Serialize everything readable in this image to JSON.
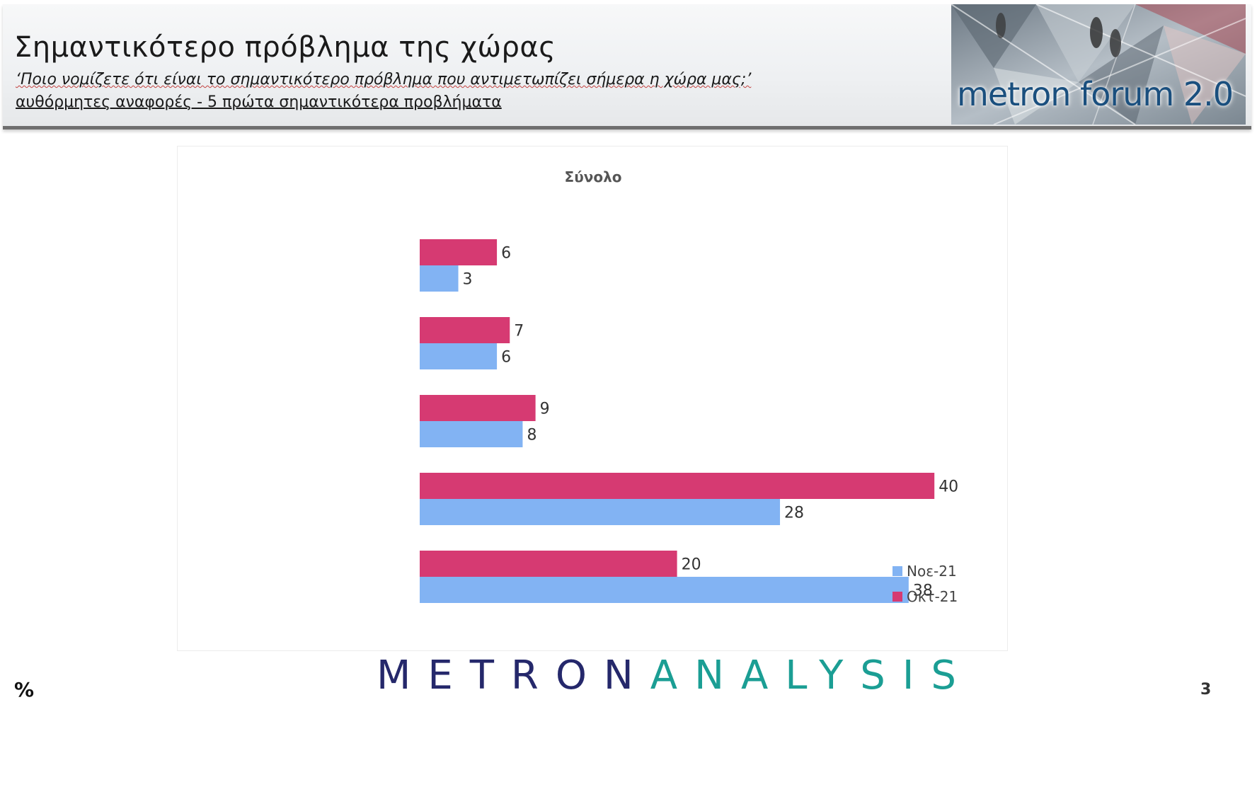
{
  "header": {
    "title": "Σημαντικότερο πρόβλημα της χώρας",
    "question": "‘Ποιο νομίζετε ότι  είναι το σημαντικότερο πρόβλημα που αντιμετωπίζει σήμερα η χώρα μας;’",
    "subnote": "αυθόρμητες αναφορές - 5 πρώτα σημαντικότερα προβλήματα",
    "logo_text": "metron forum 2.0"
  },
  "footer": {
    "unit": "%",
    "brand_part1": "METRON",
    "brand_part2": "ANALYSIS",
    "page_number": "3"
  },
  "colors": {
    "oct": "#d63a72",
    "nov": "#82b3f3",
    "label": "#333333",
    "brand_dark": "#25286b",
    "brand_teal": "#1b9e94"
  },
  "chart_data": {
    "type": "bar",
    "orientation": "horizontal",
    "title": "Σύνολο",
    "xlim": [
      0,
      40
    ],
    "grid": false,
    "legend_position": "bottom-right",
    "series": [
      {
        "name": "Οκτ-21",
        "values": [
          6,
          7,
          9,
          40,
          20
        ]
      },
      {
        "name": "Νοε-21",
        "values": [
          3,
          6,
          8,
          28,
          38
        ]
      }
    ],
    "legend": [
      {
        "name": "Νοε-21"
      },
      {
        "name": "Οκτ-21"
      }
    ]
  }
}
